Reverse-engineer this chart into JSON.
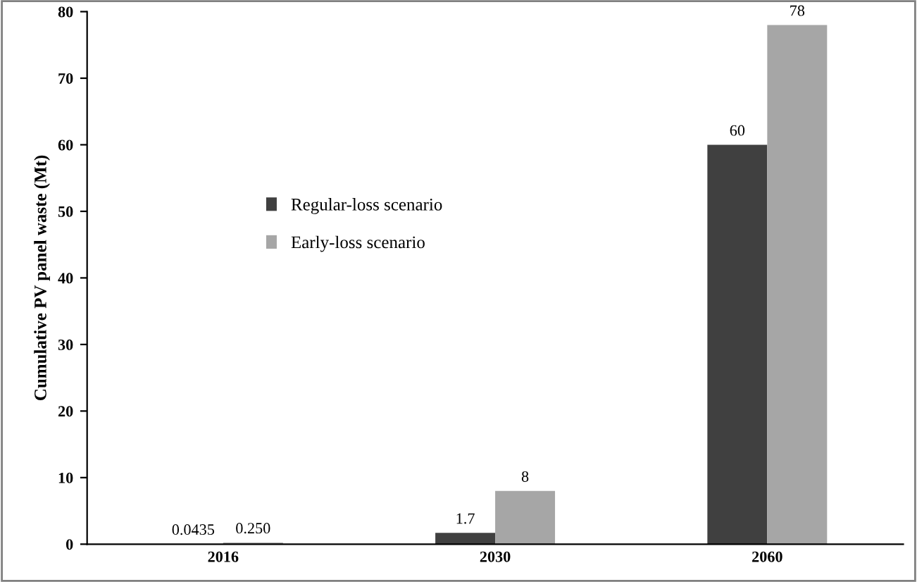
{
  "chart_data": {
    "type": "bar",
    "ylabel": "Cumulative PV panel waste (Mt)",
    "categories": [
      "2016",
      "2030",
      "2060"
    ],
    "series": [
      {
        "name": "Regular-loss scenario",
        "color": "#404040",
        "values": [
          0.0435,
          1.7,
          60
        ],
        "value_labels": [
          "0.0435",
          "1.7",
          "60"
        ]
      },
      {
        "name": "Early-loss scenario",
        "color": "#a6a6a6",
        "values": [
          0.25,
          8,
          78
        ],
        "value_labels": [
          "0.250",
          "8",
          "78"
        ]
      }
    ],
    "ylim": [
      0,
      80
    ],
    "yticks": [
      0,
      10,
      20,
      30,
      40,
      50,
      60,
      70,
      80
    ],
    "grid": false,
    "legend": "left"
  }
}
